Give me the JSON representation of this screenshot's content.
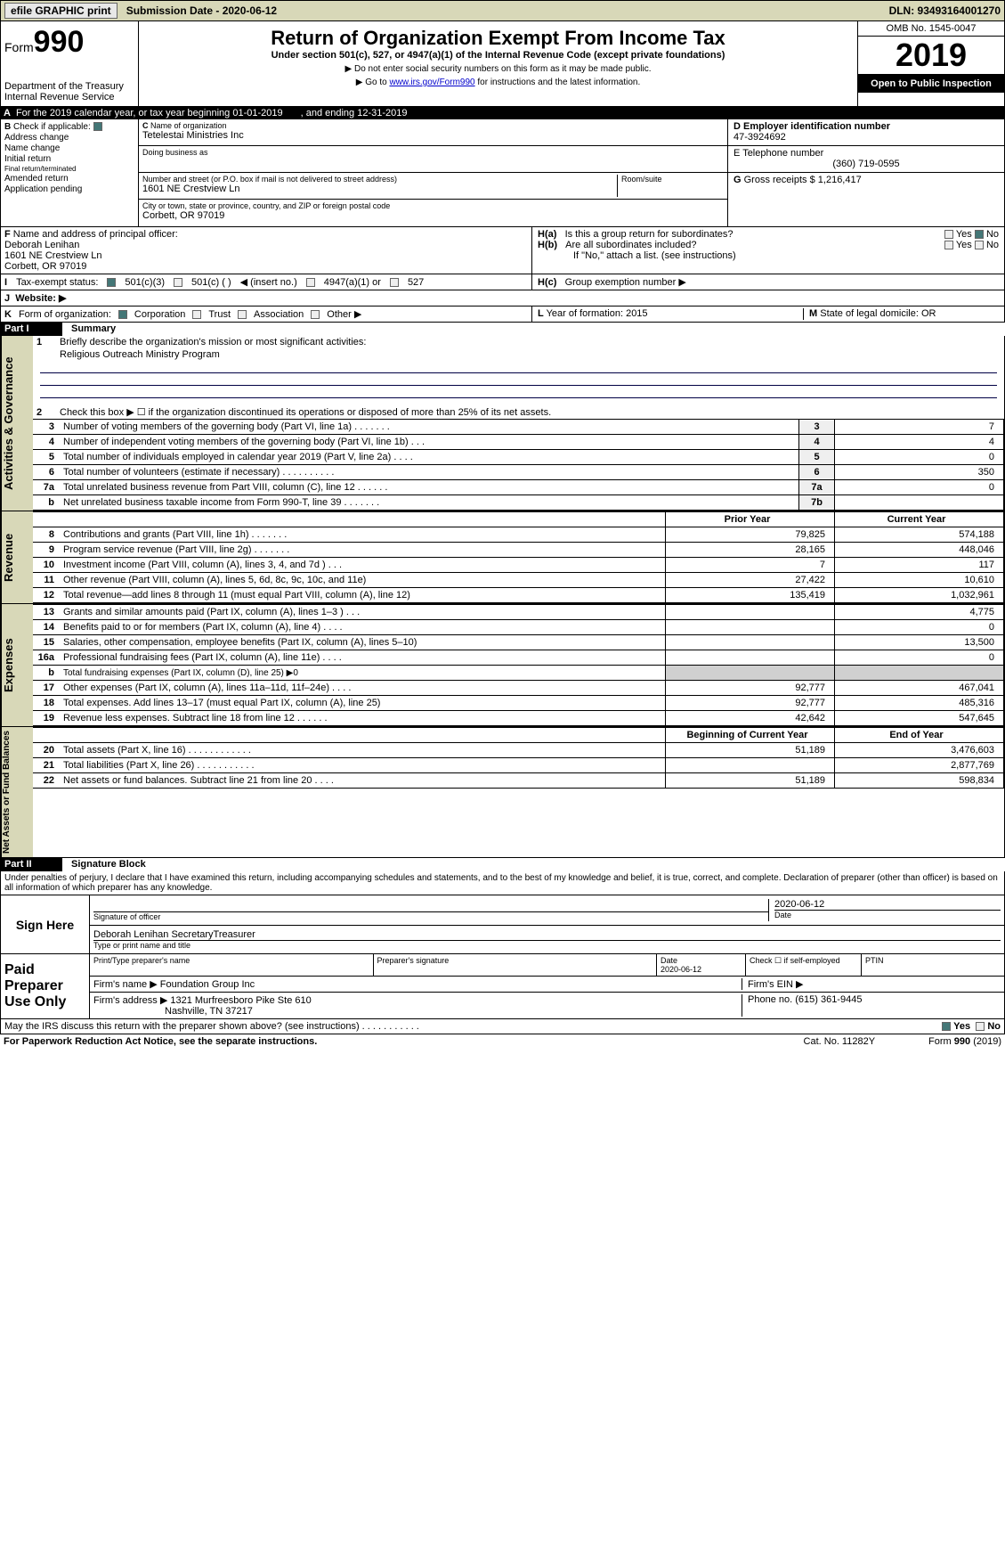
{
  "topbar": {
    "efile_label": "efile GRAPHIC print",
    "submission_label": "Submission Date - 2020-06-12",
    "dln_label": "DLN: 93493164001270"
  },
  "header": {
    "form_prefix": "Form",
    "form_number": "990",
    "title": "Return of Organization Exempt From Income Tax",
    "subtitle": "Under section 501(c), 527, or 4947(a)(1) of the Internal Revenue Code (except private foundations)",
    "note1": "▶ Do not enter social security numbers on this form as it may be made public.",
    "note2_prefix": "▶ Go to ",
    "note2_link": "www.irs.gov/Form990",
    "note2_suffix": " for instructions and the latest information.",
    "dept": "Department of the Treasury",
    "irs": "Internal Revenue Service",
    "omb": "OMB No. 1545-0047",
    "year": "2019",
    "open": "Open to Public Inspection"
  },
  "lineA": {
    "label_a": "A",
    "text": "For the 2019 calendar year, or tax year beginning 01-01-2019",
    "ending": ", and ending 12-31-2019"
  },
  "sectionB": {
    "b_label": "B",
    "check_if": "Check if applicable:",
    "addr_change": "Address change",
    "name_change": "Name change",
    "initial": "Initial return",
    "final": "Final return/terminated",
    "amended": "Amended return",
    "pending": "Application pending"
  },
  "sectionC": {
    "c_label": "C",
    "name_label": "Name of organization",
    "name": "Tetelestai Ministries Inc",
    "dba_label": "Doing business as",
    "addr_label": "Number and street (or P.O. box if mail is not delivered to street address)",
    "room_label": "Room/suite",
    "addr": "1601 NE Crestview Ln",
    "city_label": "City or town, state or province, country, and ZIP or foreign postal code",
    "city": "Corbett, OR  97019"
  },
  "sectionD": {
    "d_label": "D Employer identification number",
    "ein": "47-3924692",
    "e_label": "E Telephone number",
    "phone": "(360) 719-0595",
    "g_label": "G",
    "gross_label": "Gross receipts $",
    "gross": "1,216,417"
  },
  "sectionF": {
    "f_label": "F",
    "officer_label": "Name and address of principal officer:",
    "officer_name": "Deborah Lenihan",
    "officer_addr": "1601 NE Crestview Ln",
    "officer_city": "Corbett, OR  97019"
  },
  "sectionH": {
    "ha": "H(a)",
    "ha_text": "Is this a group return for subordinates?",
    "hb": "H(b)",
    "hb_text": "Are all subordinates included?",
    "hb_note": "If \"No,\" attach a list. (see instructions)",
    "hc": "H(c)",
    "hc_text": "Group exemption number ▶",
    "yes": "Yes",
    "no": "No"
  },
  "sectionI": {
    "i_label": "I",
    "status": "Tax-exempt status:",
    "opt1": "501(c)(3)",
    "opt2": "501(c) (  )",
    "opt2b": "◀ (insert no.)",
    "opt3": "4947(a)(1) or",
    "opt4": "527"
  },
  "sectionJ": {
    "j_label": "J",
    "website": "Website: ▶"
  },
  "sectionK": {
    "k_label": "K",
    "form_org": "Form of organization:",
    "corp": "Corporation",
    "trust": "Trust",
    "assoc": "Association",
    "other": "Other ▶"
  },
  "sectionL": {
    "l_label": "L",
    "text": "Year of formation: 2015"
  },
  "sectionM": {
    "m_label": "M",
    "text": "State of legal domicile: OR"
  },
  "part1": {
    "label": "Part I",
    "title": "Summary",
    "q1": "Briefly describe the organization's mission or most significant activities:",
    "q1_ans": "Religious Outreach Ministry Program",
    "q2": "Check this box ▶ ☐ if the organization discontinued its operations or disposed of more than 25% of its net assets."
  },
  "summary_rows": [
    {
      "n": "3",
      "desc": "Number of voting members of the governing body (Part VI, line 1a)   .     .     .     .     .     .     .",
      "box": "3",
      "val": "7"
    },
    {
      "n": "4",
      "desc": "Number of independent voting members of the governing body (Part VI, line 1b)    .     .     .",
      "box": "4",
      "val": "4"
    },
    {
      "n": "5",
      "desc": "Total number of individuals employed in calendar year 2019 (Part V, line 2a)   .     .     .     .",
      "box": "5",
      "val": "0"
    },
    {
      "n": "6",
      "desc": "Total number of volunteers (estimate if necessary)   .     .     .     .     .     .     .     .     .     .",
      "box": "6",
      "val": "350"
    },
    {
      "n": "7a",
      "desc": "Total unrelated business revenue from Part VIII, column (C), line 12  .     .     .     .     .     .",
      "box": "7a",
      "val": "0"
    },
    {
      "n": "b",
      "desc": "Net unrelated business taxable income from Form 990-T, line 39  .     .     .     .     .     .     .",
      "box": "7b",
      "val": ""
    }
  ],
  "revenue_header": {
    "prior": "Prior Year",
    "current": "Current Year"
  },
  "revenue_rows": [
    {
      "n": "8",
      "desc": "Contributions and grants (Part VIII, line 1h)  .     .     .     .     .     .     .",
      "prior": "79,825",
      "curr": "574,188"
    },
    {
      "n": "9",
      "desc": "Program service revenue (Part VIII, line 2g)   .     .     .     .     .     .     .",
      "prior": "28,165",
      "curr": "448,046"
    },
    {
      "n": "10",
      "desc": "Investment income (Part VIII, column (A), lines 3, 4, and 7d )  .     .     .",
      "prior": "7",
      "curr": "117"
    },
    {
      "n": "11",
      "desc": "Other revenue (Part VIII, column (A), lines 5, 6d, 8c, 9c, 10c, and 11e)",
      "prior": "27,422",
      "curr": "10,610"
    },
    {
      "n": "12",
      "desc": "Total revenue—add lines 8 through 11 (must equal Part VIII, column (A), line 12)",
      "prior": "135,419",
      "curr": "1,032,961"
    }
  ],
  "expense_rows": [
    {
      "n": "13",
      "desc": "Grants and similar amounts paid (Part IX, column (A), lines 1–3 )  .     .     .",
      "prior": "",
      "curr": "4,775"
    },
    {
      "n": "14",
      "desc": "Benefits paid to or for members (Part IX, column (A), line 4)  .     .     .     .",
      "prior": "",
      "curr": "0"
    },
    {
      "n": "15",
      "desc": "Salaries, other compensation, employee benefits (Part IX, column (A), lines 5–10)",
      "prior": "",
      "curr": "13,500"
    },
    {
      "n": "16a",
      "desc": "Professional fundraising fees (Part IX, column (A), line 11e)  .     .     .     .",
      "prior": "",
      "curr": "0"
    },
    {
      "n": "b",
      "desc": "Total fundraising expenses (Part IX, column (D), line 25) ▶0",
      "prior": "shade",
      "curr": "shade"
    },
    {
      "n": "17",
      "desc": "Other expenses (Part IX, column (A), lines 11a–11d, 11f–24e)  .     .     .     .",
      "prior": "92,777",
      "curr": "467,041"
    },
    {
      "n": "18",
      "desc": "Total expenses. Add lines 13–17 (must equal Part IX, column (A), line 25)",
      "prior": "92,777",
      "curr": "485,316"
    },
    {
      "n": "19",
      "desc": "Revenue less expenses. Subtract line 18 from line 12  .     .     .     .     .     .",
      "prior": "42,642",
      "curr": "547,645"
    }
  ],
  "assets_header": {
    "beg": "Beginning of Current Year",
    "end": "End of Year"
  },
  "assets_rows": [
    {
      "n": "20",
      "desc": "Total assets (Part X, line 16)  .     .     .     .     .     .     .     .     .     .     .     .",
      "prior": "51,189",
      "curr": "3,476,603"
    },
    {
      "n": "21",
      "desc": "Total liabilities (Part X, line 26)  .     .     .     .     .     .     .     .     .     .     .",
      "prior": "",
      "curr": "2,877,769"
    },
    {
      "n": "22",
      "desc": "Net assets or fund balances. Subtract line 21 from line 20  .     .     .     .",
      "prior": "51,189",
      "curr": "598,834"
    }
  ],
  "vtabs": {
    "gov": "Activities & Governance",
    "rev": "Revenue",
    "exp": "Expenses",
    "net": "Net Assets or Fund Balances"
  },
  "part2": {
    "label": "Part II",
    "title": "Signature Block"
  },
  "perjury": "Under penalties of perjury, I declare that I have examined this return, including accompanying schedules and statements, and to the best of my knowledge and belief, it is true, correct, and complete. Declaration of preparer (other than officer) is based on all information of which preparer has any knowledge.",
  "sign": {
    "here": "Sign Here",
    "sig_label": "Signature of officer",
    "date_label": "Date",
    "date": "2020-06-12",
    "name": "Deborah Lenihan  SecretaryTreasurer",
    "name_label": "Type or print name and title"
  },
  "preparer": {
    "title": "Paid Preparer Use Only",
    "print_label": "Print/Type preparer's name",
    "sig_label": "Preparer's signature",
    "date_label": "Date",
    "date": "2020-06-12",
    "check_label": "Check ☐ if self-employed",
    "ptin_label": "PTIN",
    "firm_name_label": "Firm's name    ▶",
    "firm_name": "Foundation Group Inc",
    "firm_ein_label": "Firm's EIN ▶",
    "firm_addr_label": "Firm's address ▶",
    "firm_addr": "1321 Murfreesboro Pike Ste 610",
    "firm_city": "Nashville, TN  37217",
    "phone_label": "Phone no.",
    "phone": "(615) 361-9445"
  },
  "irs_q": "May the IRS discuss this return with the preparer shown above? (see instructions)   .     .     .     .     .     .     .     .     .     .     .",
  "irs_yes": "Yes",
  "irs_no": "No",
  "footer": {
    "left": "For Paperwork Reduction Act Notice, see the separate instructions.",
    "mid": "Cat. No. 11282Y",
    "right": "Form 990 (2019)"
  }
}
